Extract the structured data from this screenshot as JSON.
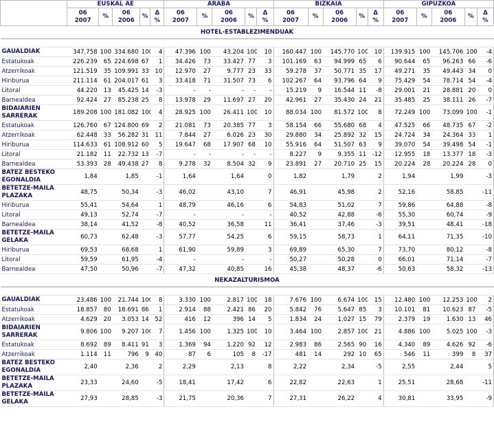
{
  "header": {
    "regions": [
      "EUSKAL AE",
      "ARABA",
      "BIZKAIA",
      "GIPUZKOA"
    ],
    "columns": [
      "06 2007",
      "%",
      "06 2006",
      "%",
      "Δ %"
    ]
  },
  "sections": [
    {
      "title": "HOTEL-ESTABLEZIMENDUAK",
      "groups": [
        {
          "label": "GAUALDIAK",
          "cells": [
            "347.758",
            "100",
            "334.680",
            "100",
            "4",
            "47.396",
            "100",
            "43.204",
            "100",
            "10",
            "160.447",
            "100",
            "145.770",
            "100",
            "10",
            "139.915",
            "100",
            "145.706",
            "100",
            "-4"
          ],
          "rows": [
            {
              "label": "Estatukoak",
              "cells": [
                "226.239",
                "65",
                "224.698",
                "67",
                "1",
                "34.426",
                "73",
                "33.427",
                "77",
                "3",
                "101.169",
                "63",
                "94.999",
                "65",
                "6",
                "90.644",
                "65",
                "96.263",
                "66",
                "-6"
              ]
            },
            {
              "label": "Atzerrikoak",
              "cells": [
                "121.519",
                "35",
                "109.991",
                "33",
                "10",
                "12.970",
                "27",
                "9.777",
                "23",
                "33",
                "59.278",
                "37",
                "50.771",
                "35",
                "17",
                "49.271",
                "35",
                "49.443",
                "34",
                "0"
              ]
            },
            {
              "label": "Hiriburua",
              "cells": [
                "211.114",
                "61",
                "204.017",
                "61",
                "3",
                "33.418",
                "71",
                "31.507",
                "73",
                "6",
                "102.267",
                "64",
                "93.796",
                "64",
                "9",
                "75.429",
                "54",
                "78.714",
                "54",
                "-4"
              ]
            },
            {
              "label": "Litoral",
              "cells": [
                "44.220",
                "13",
                "45.425",
                "14",
                "-3",
                "-",
                "-",
                "-",
                "-",
                "-",
                "15.219",
                "9",
                "16.544",
                "11",
                "-8",
                "29.001",
                "21",
                "28.881",
                "20",
                "0"
              ]
            },
            {
              "label": "Barnealdea",
              "cells": [
                "92.424",
                "27",
                "85.238",
                "25",
                "8",
                "13.978",
                "29",
                "11.697",
                "27",
                "20",
                "42.961",
                "27",
                "35.430",
                "24",
                "21",
                "35.485",
                "25",
                "38.111",
                "26",
                "-7"
              ]
            }
          ]
        },
        {
          "label": "BIDAIARIEN SARRERAK",
          "cells": [
            "189.208",
            "100",
            "181.082",
            "100",
            "4",
            "28.925",
            "100",
            "26.411",
            "100",
            "10",
            "88.034",
            "100",
            "81.572",
            "100",
            "8",
            "72.249",
            "100",
            "73.099",
            "100",
            "-1"
          ],
          "rows": [
            {
              "label": "Estatukoak",
              "cells": [
                "126.760",
                "67",
                "124.800",
                "69",
                "2",
                "21.081",
                "73",
                "20.385",
                "77",
                "3",
                "58.154",
                "66",
                "55.680",
                "68",
                "4",
                "47.525",
                "66",
                "48.735",
                "67",
                "-2"
              ]
            },
            {
              "label": "Atzerrikoak",
              "cells": [
                "62.448",
                "33",
                "56.282",
                "31",
                "11",
                "7.844",
                "27",
                "6.026",
                "23",
                "30",
                "29.880",
                "34",
                "25.892",
                "32",
                "15",
                "24.724",
                "34",
                "24.364",
                "33",
                "1"
              ]
            },
            {
              "label": "Hiriburua",
              "cells": [
                "114.633",
                "61",
                "108.912",
                "60",
                "5",
                "19.647",
                "68",
                "17.907",
                "68",
                "10",
                "55.916",
                "64",
                "51.507",
                "63",
                "9",
                "39.070",
                "54",
                "39.498",
                "54",
                "-1"
              ]
            },
            {
              "label": "Litoral",
              "cells": [
                "21.182",
                "11",
                "22.732",
                "13",
                "-7",
                "-",
                "-",
                "-",
                "-",
                "-",
                "8.227",
                "9",
                "9.355",
                "11",
                "-12",
                "12.955",
                "18",
                "13.377",
                "18",
                "-3"
              ]
            },
            {
              "label": "Barnealdea",
              "cells": [
                "53.393",
                "28",
                "49.438",
                "27",
                "8",
                "9.278",
                "32",
                "8.504",
                "32",
                "9",
                "23.891",
                "27",
                "20.710",
                "25",
                "15",
                "20.224",
                "28",
                "20.224",
                "28",
                "0"
              ]
            }
          ]
        },
        {
          "label": "BATEZ BESTEKO EGONALDIA",
          "cells": [
            "1,84",
            null,
            "1,85",
            null,
            "-1",
            "1,64",
            null,
            "1,64",
            null,
            "0",
            "1,82",
            null,
            "1,79",
            null,
            "2",
            "1,94",
            null,
            "1,99",
            null,
            "-3"
          ],
          "rows": []
        },
        {
          "label": "BETETZE-MAILA PLAZAKA",
          "cells": [
            "48,75",
            null,
            "50,34",
            null,
            "-3",
            "46,02",
            null,
            "43,10",
            null,
            "7",
            "46,91",
            null,
            "45,98",
            null,
            "2",
            "52,16",
            null,
            "58,85",
            null,
            "-11"
          ],
          "rows": [
            {
              "label": "Hiriburua",
              "cells": [
                "55,41",
                null,
                "54,64",
                null,
                "1",
                "48,79",
                null,
                "46,16",
                null,
                "6",
                "54,83",
                null,
                "51,02",
                null,
                "7",
                "59,86",
                null,
                "64,88",
                null,
                "-8"
              ]
            },
            {
              "label": "Litoral",
              "cells": [
                "49,13",
                null,
                "52,74",
                null,
                "-7",
                "-",
                null,
                "-",
                null,
                "-",
                "40,52",
                null,
                "42,88",
                null,
                "-6",
                "55,30",
                null,
                "60,74",
                null,
                "-9"
              ]
            },
            {
              "label": "Barnealdea",
              "cells": [
                "38,14",
                null,
                "41,52",
                null,
                "-8",
                "40,52",
                null,
                "36,58",
                null,
                "11",
                "36,41",
                null,
                "37,46",
                null,
                "-3",
                "39,51",
                null,
                "48,41",
                null,
                "-18"
              ]
            }
          ]
        },
        {
          "label": "BETETZE-MAILA GELAKA",
          "cells": [
            "60,73",
            null,
            "62,48",
            null,
            "-3",
            "57,77",
            null,
            "54,25",
            null,
            "6",
            "59,15",
            null,
            "58,73",
            null,
            "1",
            "64,11",
            null,
            "71,35",
            null,
            "-10"
          ],
          "rows": [
            {
              "label": "Hiriburua",
              "cells": [
                "69,53",
                null,
                "68,68",
                null,
                "1",
                "61,90",
                null,
                "59,89",
                null,
                "3",
                "69,89",
                null,
                "65,30",
                null,
                "7",
                "73,70",
                null,
                "80,12",
                null,
                "-8"
              ]
            },
            {
              "label": "Litoral",
              "cells": [
                "59,59",
                null,
                "61,95",
                null,
                "-4",
                "-",
                null,
                "-",
                null,
                "-",
                "50,27",
                null,
                "50,28",
                null,
                "0",
                "66,01",
                null,
                "71,14",
                null,
                "-7"
              ]
            },
            {
              "label": "Barnealdea",
              "cells": [
                "47,50",
                null,
                "50,96",
                null,
                "-7",
                "47,32",
                null,
                "40,85",
                null,
                "16",
                "45,38",
                null,
                "48,37",
                null,
                "-6",
                "50,63",
                null,
                "58,32",
                null,
                "-13"
              ]
            }
          ]
        }
      ]
    },
    {
      "title": "NEKAZALTURISMOA",
      "groups": [
        {
          "label": "GAUALDIAK",
          "cells": [
            "23.486",
            "100",
            "21.744",
            "100",
            "8",
            "3.330",
            "100",
            "2.817",
            "100",
            "18",
            "7.676",
            "100",
            "6.674",
            "100",
            "15",
            "12.480",
            "100",
            "12.253",
            "100",
            "2"
          ],
          "rows": [
            {
              "label": "Estatukoak",
              "cells": [
                "18.857",
                "80",
                "18.691",
                "86",
                "1",
                "2.914",
                "88",
                "2.421",
                "86",
                "20",
                "5.842",
                "76",
                "5.647",
                "85",
                "3",
                "10.101",
                "81",
                "10.623",
                "87",
                "-5"
              ]
            },
            {
              "label": "Atzerrikoak",
              "cells": [
                "4.629",
                "20",
                "3.053",
                "14",
                "52",
                "416",
                "12",
                "396",
                "14",
                "5",
                "1.834",
                "24",
                "1.027",
                "15",
                "79",
                "2.379",
                "19",
                "1.630",
                "13",
                "46"
              ]
            }
          ]
        },
        {
          "label": "BIDAIARIEN SARRERAK",
          "cells": [
            "9.806",
            "100",
            "9.207",
            "100",
            "7",
            "1.456",
            "100",
            "1.325",
            "100",
            "10",
            "3.464",
            "100",
            "2.857",
            "100",
            "21",
            "4.886",
            "100",
            "5.025",
            "100",
            "-3"
          ],
          "rows": [
            {
              "label": "Estatukoak",
              "cells": [
                "8.692",
                "89",
                "8.411",
                "91",
                "3",
                "1.369",
                "94",
                "1.220",
                "92",
                "12",
                "2.983",
                "86",
                "2.565",
                "90",
                "16",
                "4.340",
                "89",
                "4.626",
                "92",
                "-6"
              ]
            },
            {
              "label": "Atzerrikoak",
              "cells": [
                "1.114",
                "11",
                "796",
                "9",
                "40",
                "87",
                "6",
                "105",
                "8",
                "-17",
                "481",
                "14",
                "292",
                "10",
                "65",
                "546",
                "11",
                "399",
                "8",
                "37"
              ]
            }
          ]
        },
        {
          "label": "BATEZ BESTEKO EGONALDIA",
          "cells": [
            "2,40",
            null,
            "2,36",
            null,
            "2",
            "2,29",
            null,
            "2,13",
            null,
            "8",
            "2,22",
            null,
            "2,34",
            null,
            "-5",
            "2,55",
            null,
            "2,44",
            null,
            "5"
          ],
          "rows": []
        },
        {
          "label": "BETETZE-MAILA PLAZAKA",
          "cells": [
            "23,33",
            null,
            "24,60",
            null,
            "-5",
            "18,41",
            null,
            "17,42",
            null,
            "6",
            "22,82",
            null,
            "22,63",
            null,
            "1",
            "25,51",
            null,
            "28,68",
            null,
            "-11"
          ],
          "rows": []
        },
        {
          "label": "BETETZE-MAILA GELAKA",
          "cells": [
            "27,93",
            null,
            "28,85",
            null,
            "-3",
            "21,75",
            null,
            "20,36",
            null,
            "7",
            "27,31",
            null,
            "26,22",
            null,
            "4",
            "30,81",
            null,
            "33,95",
            null,
            "-9"
          ],
          "rows": []
        }
      ]
    }
  ]
}
